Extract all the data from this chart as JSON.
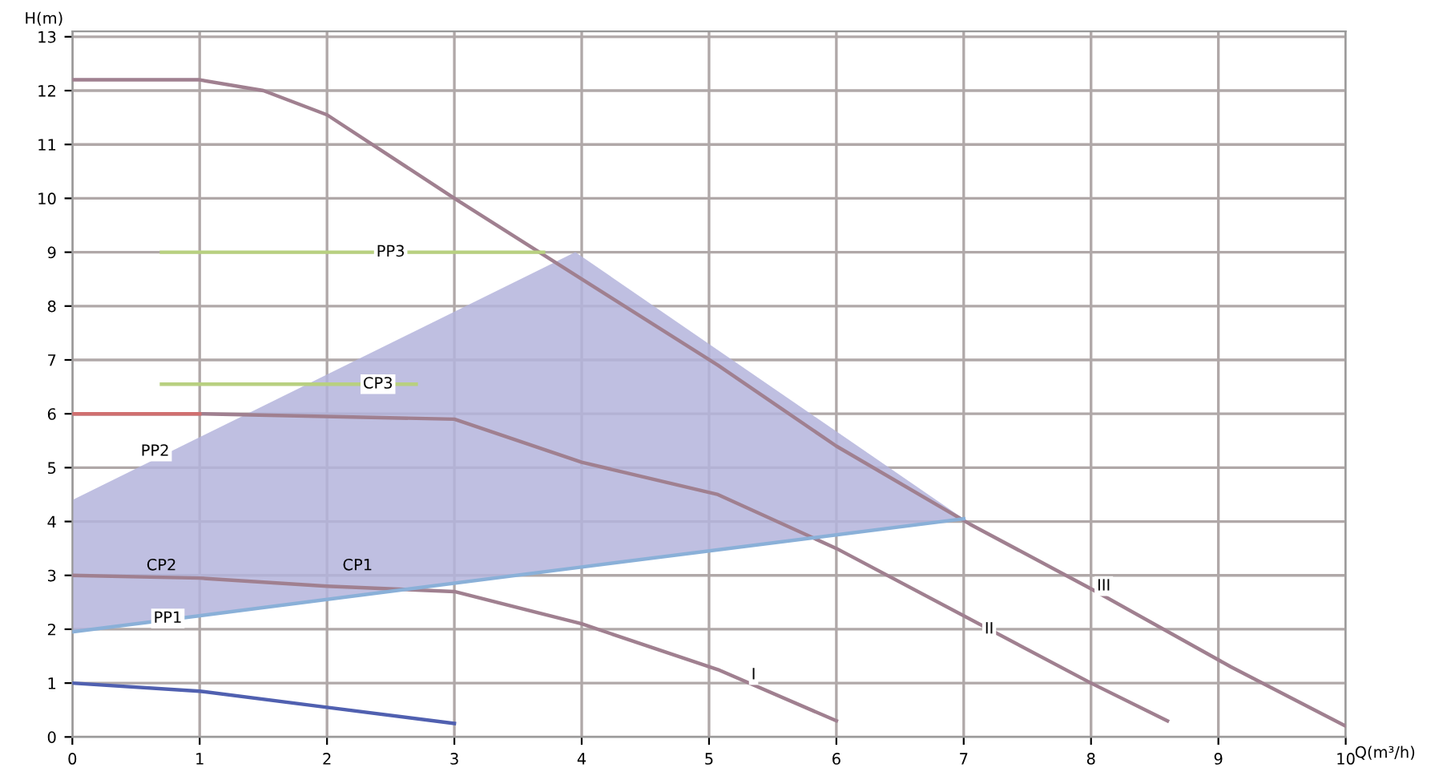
{
  "chart_data": {
    "type": "line",
    "xlabel": "Q(m³/h)",
    "ylabel": "H(m)",
    "xlim": [
      0,
      10
    ],
    "ylim": [
      0,
      13.1
    ],
    "xticks": [
      0,
      1,
      2,
      3,
      4,
      5,
      6,
      7,
      8,
      9,
      10
    ],
    "yticks": [
      0,
      1,
      2,
      3,
      4,
      5,
      6,
      7,
      8,
      9,
      10,
      11,
      12,
      13
    ],
    "grid": true,
    "series": [
      {
        "color": "#8ab0d8",
        "x": [
          0,
          3.95,
          7.0
        ],
        "values": [
          1.95,
          3.14,
          4.05
        ],
        "lower": [
          1.95,
          3.14,
          4.05
        ],
        "upper": [
          4.4,
          9.0,
          4.05
        ]
      },
      {
        "color": "#b8d080",
        "x": [
          0.7,
          3.7
        ],
        "values": [
          9.0,
          9.0
        ]
      },
      {
        "color": "#b8d080",
        "x": [
          0.7,
          2.7
        ],
        "values": [
          6.55,
          6.55
        ]
      },
      {
        "color": "#d07070",
        "x": [
          0,
          1.0
        ],
        "values": [
          6.0,
          6.0
        ]
      },
      {
        "color": "#a08090",
        "x": [
          0,
          1,
          1.5,
          2,
          3,
          4,
          5.07,
          6,
          7.05,
          8,
          9.1,
          10
        ],
        "values": [
          12.2,
          12.2,
          12.0,
          11.55,
          10.0,
          8.5,
          6.9,
          5.4,
          3.95,
          2.75,
          1.3,
          0.2
        ]
      },
      {
        "color": "#a08090",
        "x": [
          0,
          1,
          3,
          4,
          5.07,
          6,
          8,
          8.6
        ],
        "values": [
          6.0,
          6.0,
          5.9,
          5.1,
          4.5,
          3.5,
          1.0,
          0.3
        ]
      },
      {
        "color": "#a08090",
        "x": [
          0,
          1,
          2,
          3,
          4,
          5.07,
          6
        ],
        "values": [
          3.0,
          2.95,
          2.8,
          2.7,
          2.1,
          1.25,
          0.3
        ]
      },
      {
        "color": "#5060b0",
        "x": [
          0,
          1,
          2,
          3
        ],
        "values": [
          1.0,
          0.85,
          0.55,
          0.25
        ]
      }
    ],
    "annotations": [
      {
        "text": "PP3",
        "x": 2.5,
        "y": 9.0
      },
      {
        "text": "CP3",
        "x": 2.4,
        "y": 6.55
      },
      {
        "text": "PP2",
        "x": 0.65,
        "y": 5.3
      },
      "CP2",
      "CP1",
      {
        "text": "PP1",
        "x": 0.75,
        "y": 2.2
      },
      {
        "text": "III",
        "x": 8.1,
        "y": 2.8
      },
      {
        "text": "II",
        "x": 7.2,
        "y": 2.0
      },
      {
        "text": "I",
        "x": 5.35,
        "y": 1.15
      }
    ]
  }
}
